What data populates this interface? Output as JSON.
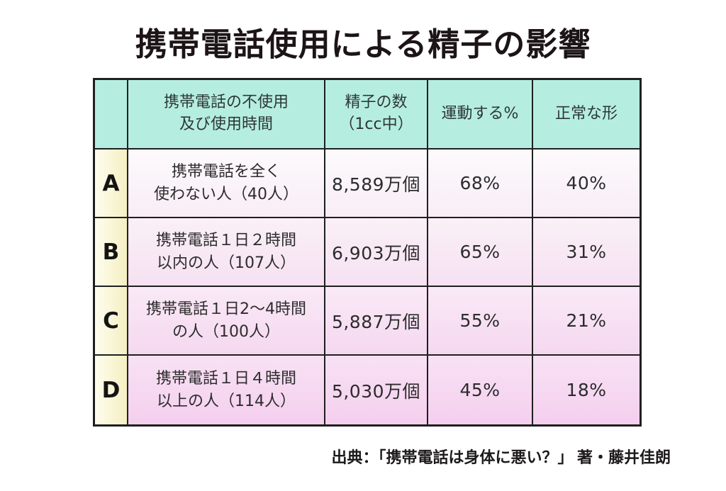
{
  "title": "携帯電話使用による精子の影響",
  "table": {
    "headers": {
      "corner": "",
      "usage": "携帯電話の不使用\n及び使用時間",
      "sperm_count": "精子の数\n（1cc中）",
      "motility": "運動する%",
      "normal_shape": "正常な形"
    },
    "rows": [
      {
        "label": "A",
        "usage": "携帯電話を全く\n使わない人（40人）",
        "sperm_count": "8,589万個",
        "motility": "68%",
        "normal_shape": "40%",
        "bg_top": "#fdfafc",
        "bg_bottom": "#f8edf6"
      },
      {
        "label": "B",
        "usage": "携帯電話１日２時間\n以内の人（107人）",
        "sperm_count": "6,903万個",
        "motility": "65%",
        "normal_shape": "31%",
        "bg_top": "#faf0f7",
        "bg_bottom": "#f6e1f2"
      },
      {
        "label": "C",
        "usage": "携帯電話１日2～4時間\nの人（100人）",
        "sperm_count": "5,887万個",
        "motility": "55%",
        "normal_shape": "21%",
        "bg_top": "#f9e9f6",
        "bg_bottom": "#f5d8f0"
      },
      {
        "label": "D",
        "usage": "携帯電話１日４時間\n以上の人（114人）",
        "sperm_count": "5,030万個",
        "motility": "45%",
        "normal_shape": "18%",
        "bg_top": "#f8e1f4",
        "bg_bottom": "#f4cfee"
      }
    ]
  },
  "source": "出典：「携帯電話は身体に悪い？」 著・藤井佳朗",
  "colors": {
    "header_bg": "#b5eee1",
    "label_bg_left": "#fefdee",
    "label_bg_right": "#f5efc2",
    "border": "#1f1f1f",
    "title_text": "#1c1416",
    "body_text": "#2c2c2c"
  },
  "chart_data": {
    "type": "table",
    "title": "携帯電話使用による精子の影響",
    "columns": [
      "",
      "携帯電話の不使用及び使用時間",
      "精子の数（1cc中）",
      "運動する%",
      "正常な形"
    ],
    "rows": [
      [
        "A",
        "携帯電話を全く使わない人（40人）",
        "8,589万個",
        "68%",
        "40%"
      ],
      [
        "B",
        "携帯電話１日２時間以内の人（107人）",
        "6,903万個",
        "65%",
        "31%"
      ],
      [
        "C",
        "携帯電話１日2～4時間の人（100人）",
        "5,887万個",
        "55%",
        "21%"
      ],
      [
        "D",
        "携帯電話１日４時間以上の人（114人）",
        "5,030万個",
        "45%",
        "18%"
      ]
    ],
    "numeric": {
      "group_sizes": [
        40,
        107,
        100,
        114
      ],
      "sperm_count_man_per_cc": [
        8589,
        6903,
        5887,
        5030
      ],
      "motility_pct": [
        68,
        65,
        55,
        45
      ],
      "normal_shape_pct": [
        40,
        31,
        21,
        18
      ]
    },
    "source": "出典：「携帯電話は身体に悪い？」 著・藤井佳朗"
  }
}
